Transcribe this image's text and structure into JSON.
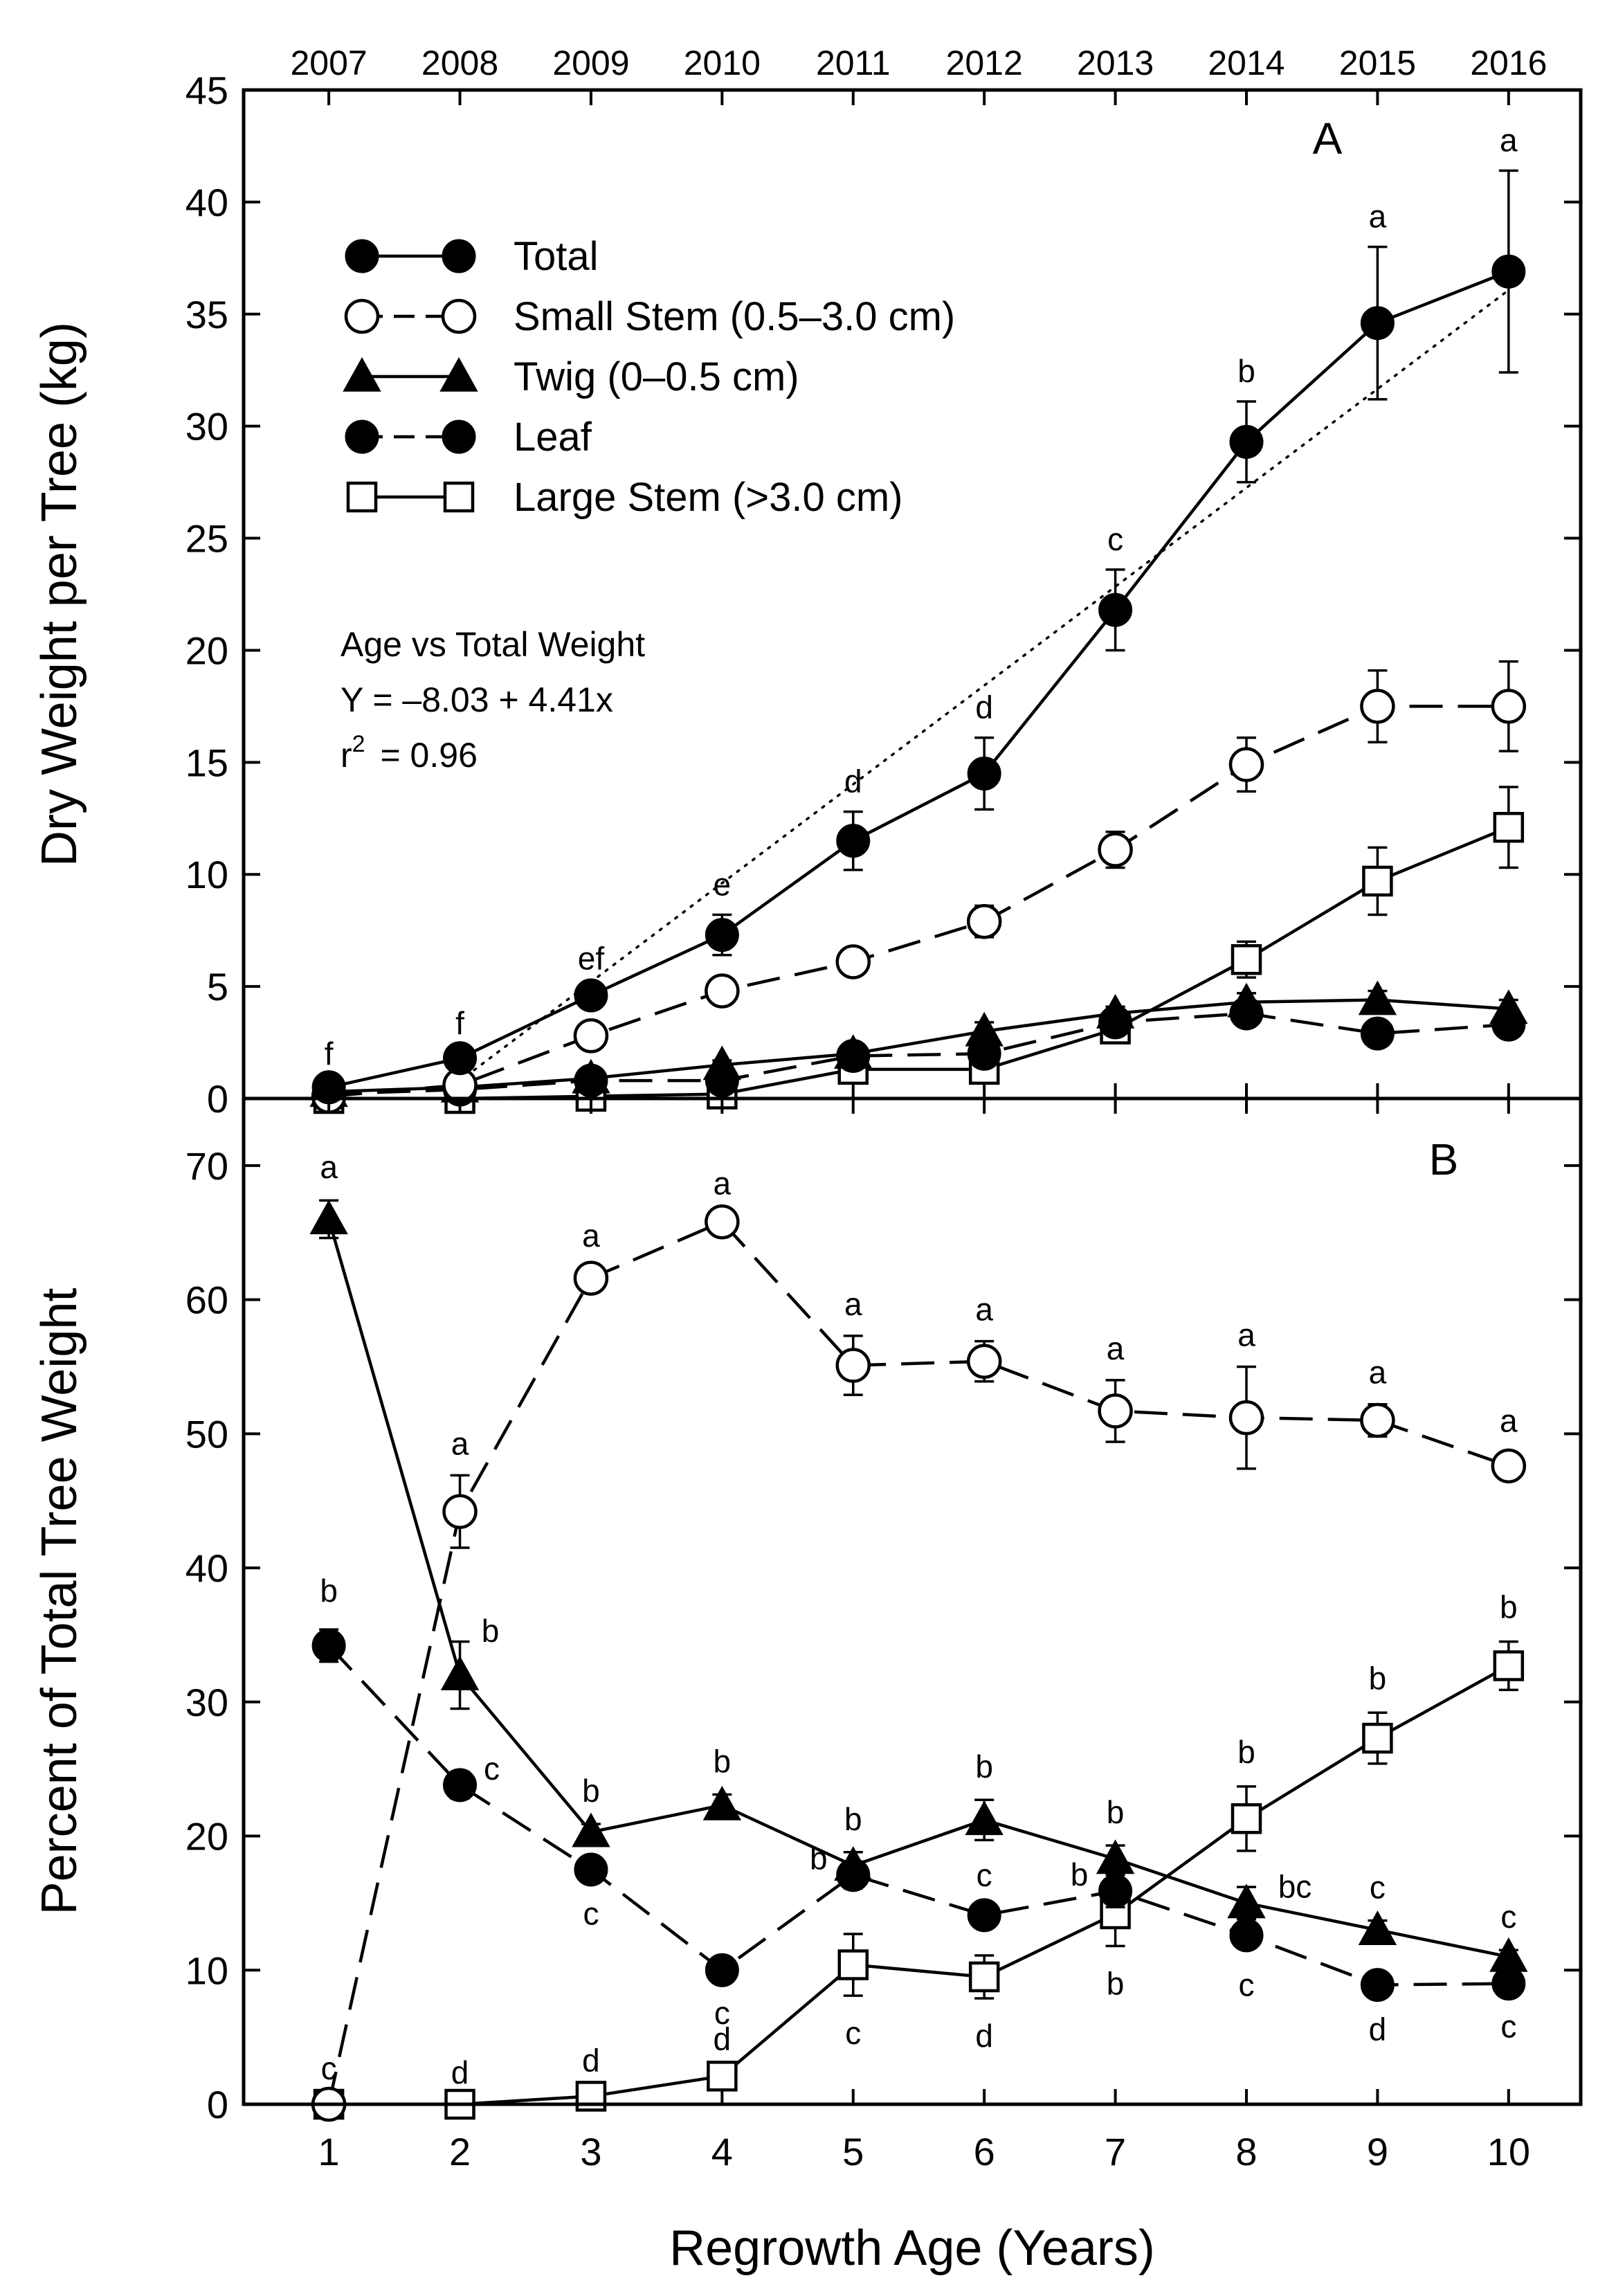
{
  "chart_data": {
    "type": "line",
    "x_label": "Regrowth Age (Years)",
    "x": [
      1,
      2,
      3,
      4,
      5,
      6,
      7,
      8,
      9,
      10
    ],
    "x_ticks": [
      "1",
      "2",
      "3",
      "4",
      "5",
      "6",
      "7",
      "8",
      "9",
      "10"
    ],
    "years": [
      "2007",
      "2008",
      "2009",
      "2010",
      "2011",
      "2012",
      "2013",
      "2014",
      "2015",
      "2016"
    ],
    "legend": [
      {
        "name": "Total",
        "marker": "circle-filled",
        "dash": "solid"
      },
      {
        "name": "Small Stem (0.5–3.0 cm)",
        "marker": "circle-open",
        "dash": "dashed"
      },
      {
        "name": "Twig (0–0.5 cm)",
        "marker": "triangle-filled",
        "dash": "solid"
      },
      {
        "name": "Leaf",
        "marker": "circle-filled",
        "dash": "dashed"
      },
      {
        "name": "Large Stem (>3.0 cm)",
        "marker": "square-open",
        "dash": "solid"
      }
    ],
    "panels": [
      {
        "id": "A",
        "label": "A",
        "y_label": "Dry Weight per Tree (kg)",
        "ylim": [
          0,
          45
        ],
        "y_ticks": [
          0,
          5,
          10,
          15,
          20,
          25,
          30,
          35,
          40,
          45
        ],
        "regression": {
          "lines": [
            "Age vs Total Weight",
            "Y = –8.03 + 4.41x",
            "r",
            "= 0.96"
          ],
          "superscript": "2",
          "intercept": -8.03,
          "slope": 4.41,
          "x_start": 2.05
        },
        "series": [
          {
            "name": "Total",
            "marker": "circle-filled",
            "dash": "solid",
            "values": [
              0.5,
              1.8,
              4.6,
              7.3,
              11.5,
              14.5,
              21.8,
              29.3,
              34.6,
              36.9
            ],
            "errors": [
              0.15,
              0.2,
              0.3,
              0.9,
              1.3,
              1.6,
              1.8,
              1.8,
              3.4,
              4.5
            ],
            "sig": [
              "f",
              "f",
              "ef",
              "e",
              "d",
              "d",
              "c",
              "b",
              "a",
              "a"
            ]
          },
          {
            "name": "Small Stem (0.5–3.0 cm)",
            "marker": "circle-open",
            "dash": "dashed",
            "values": [
              0.1,
              0.6,
              2.8,
              4.8,
              6.1,
              7.9,
              11.1,
              14.9,
              17.5,
              17.5
            ],
            "errors": [
              0.05,
              0.1,
              0.25,
              0.6,
              0.3,
              0.7,
              0.8,
              1.2,
              1.6,
              2.0
            ]
          },
          {
            "name": "Twig (0–0.5 cm)",
            "marker": "triangle-filled",
            "dash": "solid",
            "values": [
              0.3,
              0.5,
              0.9,
              1.5,
              2.0,
              3.0,
              3.8,
              4.3,
              4.4,
              4.0
            ],
            "errors": [
              0.05,
              0.1,
              0.1,
              0.2,
              0.3,
              0.4,
              0.3,
              0.4,
              0.4,
              0.4
            ]
          },
          {
            "name": "Leaf",
            "marker": "circle-filled",
            "dash": "dashed",
            "values": [
              0.2,
              0.4,
              0.8,
              0.8,
              1.9,
              2.0,
              3.4,
              3.8,
              2.9,
              3.3
            ],
            "errors": [
              0.05,
              0.05,
              0.1,
              0.1,
              0.2,
              0.3,
              0.3,
              0.4,
              0.3,
              0.3
            ]
          },
          {
            "name": "Large Stem (>3.0 cm)",
            "marker": "square-open",
            "dash": "solid",
            "values": [
              0.0,
              0.0,
              0.1,
              0.2,
              1.3,
              1.3,
              3.1,
              6.2,
              9.7,
              12.1
            ],
            "errors": [
              0.0,
              0.0,
              0.05,
              0.1,
              0.4,
              0.4,
              0.4,
              0.8,
              1.5,
              1.8
            ]
          }
        ]
      },
      {
        "id": "B",
        "label": "B",
        "y_label": "Percent of Total Tree Weight",
        "ylim": [
          0,
          75
        ],
        "y_ticks": [
          0,
          10,
          20,
          30,
          40,
          50,
          60,
          70
        ],
        "series": [
          {
            "name": "Small Stem (0.5–3.0 cm)",
            "marker": "circle-open",
            "dash": "dashed",
            "values": [
              0,
              44.2,
              61.6,
              65.8,
              55.1,
              55.4,
              51.7,
              51.2,
              51.0,
              47.6
            ],
            "errors": [
              0,
              2.7,
              0.8,
              0.5,
              2.2,
              1.5,
              2.3,
              3.8,
              1.2,
              1.0
            ],
            "sig": [
              "c",
              "a",
              "a",
              "a",
              "a",
              "a",
              "a",
              "a",
              "a",
              "a"
            ]
          },
          {
            "name": "Twig (0–0.5 cm)",
            "marker": "triangle-filled",
            "dash": "solid",
            "values": [
              66.0,
              32.0,
              20.3,
              22.3,
              17.8,
              21.2,
              18.3,
              15.0,
              13.0,
              11.0
            ],
            "errors": [
              1.4,
              2.5,
              0.6,
              0.8,
              1.0,
              1.5,
              1.0,
              1.2,
              0.7,
              0.5
            ],
            "sig": [
              "a",
              "b",
              "b",
              "b",
              "b",
              "b",
              "b",
              "bc",
              "c",
              "c"
            ]
          },
          {
            "name": "Leaf",
            "marker": "circle-filled",
            "dash": "dashed",
            "values": [
              34.2,
              23.8,
              17.5,
              10.0,
              17.1,
              14.1,
              15.9,
              12.6,
              8.9,
              9.0
            ],
            "errors": [
              1.2,
              1.0,
              0.5,
              0.4,
              1.0,
              0.6,
              1.2,
              0.9,
              0.5,
              0.4
            ],
            "sig": [
              "b",
              "c",
              "c",
              "c",
              "b",
              "c",
              "b",
              "c",
              "d",
              "c"
            ]
          },
          {
            "name": "Large Stem (>3.0 cm)",
            "marker": "square-open",
            "dash": "solid",
            "values": [
              0,
              0,
              0.6,
              2.1,
              10.4,
              9.5,
              14.2,
              21.3,
              27.3,
              32.7
            ],
            "errors": [
              0,
              0,
              0.3,
              0.4,
              2.3,
              1.6,
              2.4,
              2.4,
              1.9,
              1.8
            ],
            "sig": [
              "",
              "d",
              "d",
              "d",
              "c",
              "d",
              "b",
              "b",
              "b",
              "b"
            ]
          }
        ]
      }
    ]
  }
}
